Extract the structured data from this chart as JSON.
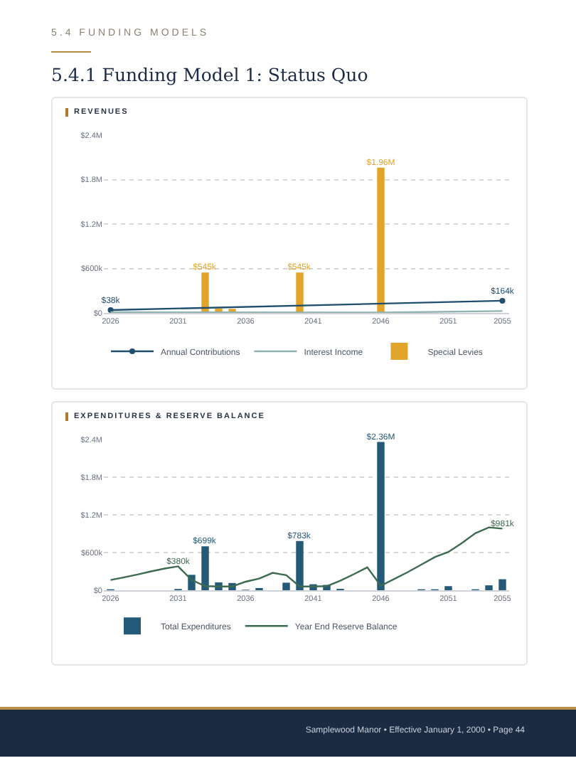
{
  "chart_data": [
    {
      "type": "bar",
      "title": "REVENUES",
      "annotations": [
        "5.4 FUNDING MODELS",
        "5.4.1 Funding Model 1: Status Quo"
      ],
      "series": [
        {
          "name": "Annual Contributions",
          "type": "line",
          "color": "#1f4e6e",
          "marker": "circle",
          "x": [
            2026,
            2055
          ],
          "values": [
            38000,
            164000
          ],
          "value_labels": [
            "$38k",
            "$164k"
          ]
        },
        {
          "name": "Interest Income",
          "type": "line",
          "color": "#8fb3b0",
          "marker": "none",
          "x": [
            2026,
            2046,
            2055
          ],
          "values": [
            10000,
            5000,
            25000
          ]
        },
        {
          "name": "Special Levies",
          "color": "#e0a52a",
          "x": [
            2033,
            2034,
            2035,
            2040,
            2046
          ],
          "values": [
            545000,
            60000,
            55000,
            545000,
            1960000
          ],
          "value_labels": [
            "$545k",
            null,
            null,
            "$545k",
            "$1.96M"
          ]
        }
      ],
      "xlim": [
        2025.5,
        2055.5
      ],
      "xticks": [
        2026,
        2031,
        2036,
        2041,
        2046,
        2051,
        2055
      ],
      "ylim": [
        0,
        2400000
      ],
      "yticks": [
        {
          "value": 0,
          "label": "$0"
        },
        {
          "value": 600000,
          "label": "$600k"
        },
        {
          "value": 1200000,
          "label": "$1.2M"
        },
        {
          "value": 1800000,
          "label": "$1.8M"
        },
        {
          "value": 2400000,
          "label": "$2.4M"
        }
      ],
      "grid": "y",
      "legend": "bottom left"
    },
    {
      "type": "bar",
      "title": "EXPENDITURES & RESERVE BALANCE",
      "annotations": [
        "Samplewood Manor • Effective January 1, 2000 • Page 44"
      ],
      "x": [
        2026,
        2027,
        2028,
        2029,
        2030,
        2031,
        2032,
        2033,
        2034,
        2035,
        2036,
        2037,
        2038,
        2039,
        2040,
        2041,
        2042,
        2043,
        2044,
        2045,
        2046,
        2047,
        2048,
        2049,
        2050,
        2051,
        2052,
        2053,
        2054,
        2055
      ],
      "series": [
        {
          "name": "Total Expenditures",
          "color": "#245a78",
          "values": [
            15000,
            0,
            0,
            0,
            0,
            20000,
            245000,
            699000,
            125000,
            115000,
            8000,
            35000,
            0,
            120000,
            783000,
            95000,
            85000,
            22000,
            0,
            0,
            2360000,
            null,
            0,
            15000,
            15000,
            65000,
            0,
            15000,
            78000,
            175000
          ],
          "value_labels": [
            null,
            null,
            null,
            null,
            null,
            null,
            null,
            "$699k",
            null,
            null,
            null,
            null,
            null,
            null,
            "$783k",
            null,
            null,
            null,
            null,
            null,
            "$2.36M",
            null,
            null,
            null,
            null,
            null,
            null,
            null,
            null,
            null
          ]
        },
        {
          "name": "Year End Reserve Balance",
          "type": "line",
          "color": "#3d6b4f",
          "marker": "none",
          "values": [
            163000,
            205000,
            250000,
            300000,
            345000,
            380000,
            163000,
            65000,
            60000,
            60000,
            136000,
            185000,
            277000,
            239000,
            60000,
            60000,
            65000,
            152000,
            255000,
            364000,
            70000,
            180000,
            288000,
            408000,
            527000,
            609000,
            750000,
            908000,
            1000000,
            981000
          ],
          "value_labels": [
            null,
            null,
            null,
            null,
            null,
            "$380k",
            null,
            null,
            null,
            null,
            null,
            null,
            null,
            null,
            null,
            null,
            null,
            null,
            null,
            null,
            null,
            null,
            null,
            null,
            null,
            null,
            null,
            null,
            null,
            "$981k"
          ]
        }
      ],
      "xlim": [
        2025.5,
        2055.5
      ],
      "xticks": [
        2026,
        2031,
        2036,
        2041,
        2046,
        2051,
        2055
      ],
      "ylim": [
        0,
        2400000
      ],
      "yticks": [
        {
          "value": 0,
          "label": "$0"
        },
        {
          "value": 600000,
          "label": "$600k"
        },
        {
          "value": 1200000,
          "label": "$1.2M"
        },
        {
          "value": 1800000,
          "label": "$1.8M"
        },
        {
          "value": 2400000,
          "label": "$2.4M"
        }
      ],
      "grid": "y",
      "legend": "bottom left"
    }
  ]
}
